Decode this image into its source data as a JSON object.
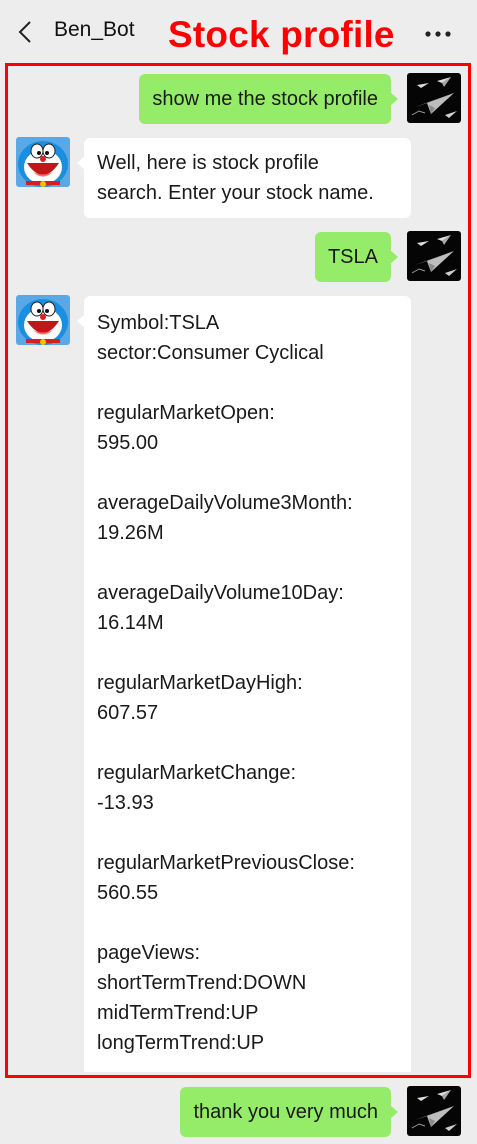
{
  "header": {
    "back_icon": "chevron-left-icon",
    "title": "Ben_Bot",
    "banner": "Stock profile",
    "more_icon": "ellipsis-icon"
  },
  "colors": {
    "outgoing_bubble": "#95ec69",
    "incoming_bubble": "#ffffff",
    "annotation": "#ff0000",
    "background": "#ededed"
  },
  "messages": [
    {
      "sender": "user",
      "avatar_icon": "paper-plane-avatar-icon",
      "text": "show me the stock profile"
    },
    {
      "sender": "bot",
      "avatar_icon": "doraemon-avatar-icon",
      "lines": [
        "Well, here is stock profile",
        "search. Enter your stock name."
      ]
    },
    {
      "sender": "user",
      "avatar_icon": "paper-plane-avatar-icon",
      "text": "TSLA"
    },
    {
      "sender": "bot",
      "avatar_icon": "doraemon-avatar-icon",
      "profile": {
        "symbol": "Symbol:TSLA",
        "sector": "sector:Consumer Cyclical",
        "open_label": "regularMarketOpen:",
        "open_value": "595.00",
        "avg3m_label": "averageDailyVolume3Month:",
        "avg3m_value": "19.26M",
        "avg10d_label": "averageDailyVolume10Day:",
        "avg10d_value": "16.14M",
        "dayhigh_label": "regularMarketDayHigh:",
        "dayhigh_value": "607.57",
        "change_label": "regularMarketChange:",
        "change_value": "-13.93",
        "prevclose_label": "regularMarketPreviousClose:",
        "prevclose_value": "560.55",
        "pageviews_label": "pageViews:",
        "short_trend": "shortTermTrend:DOWN",
        "mid_trend": "midTermTrend:UP",
        "long_trend": "longTermTrend:UP"
      }
    },
    {
      "sender": "user",
      "avatar_icon": "paper-plane-avatar-icon",
      "text": "thank you very much"
    }
  ]
}
